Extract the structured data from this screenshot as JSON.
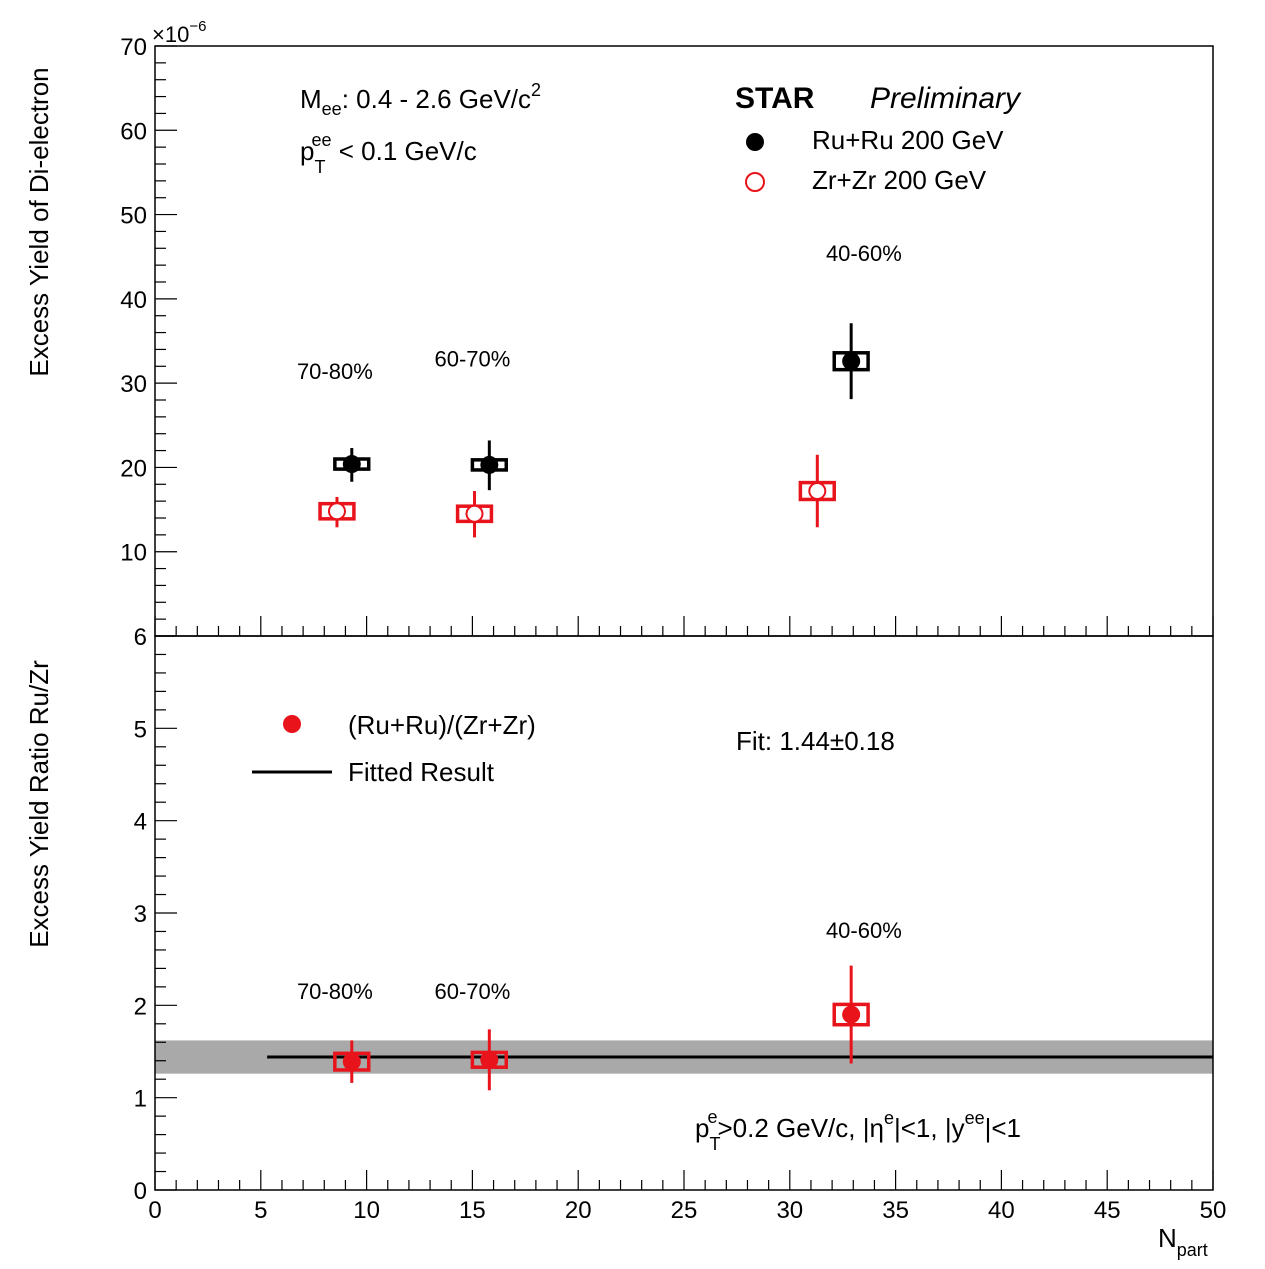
{
  "chart_data": [
    {
      "type": "scatter",
      "ylabel": "Excess Yield of Di-electron",
      "y_multiplier": "×10",
      "y_multiplier_exp": "−6",
      "ylim": [
        0,
        70
      ],
      "yticks": [
        10,
        20,
        30,
        40,
        50,
        60,
        70
      ],
      "xlim": [
        0,
        50
      ],
      "annotations": {
        "mass_range": {
          "prefix": "M",
          "sub": "ee",
          "text": ": 0.4 - 2.6 GeV/c",
          "sup": "2"
        },
        "pt_cut": {
          "prefix": "p",
          "sub": "T",
          "sup": "ee",
          "text": " < 0.1 GeV/c"
        },
        "experiment": "STAR",
        "status": "Preliminary"
      },
      "centrality_labels": [
        {
          "text": "70-80%",
          "x": 8.5,
          "y": 30.5
        },
        {
          "text": "60-70%",
          "x": 15.0,
          "y": 32.0
        },
        {
          "text": "40-60%",
          "x": 33.5,
          "y": 44.5
        }
      ],
      "series": [
        {
          "name": "Ru+Ru 200 GeV",
          "color": "#000000",
          "marker": "filled-circle",
          "points": [
            {
              "x": 9.3,
              "y": 20.4,
              "stat_lo": 18.3,
              "stat_hi": 22.3,
              "sys_dx": 0.8,
              "sys_lo": 19.8,
              "sys_hi": 21.0
            },
            {
              "x": 15.8,
              "y": 20.3,
              "stat_lo": 17.3,
              "stat_hi": 23.2,
              "sys_dx": 0.8,
              "sys_lo": 19.7,
              "sys_hi": 20.9
            },
            {
              "x": 32.9,
              "y": 32.6,
              "stat_lo": 28.1,
              "stat_hi": 37.1,
              "sys_dx": 0.8,
              "sys_lo": 31.6,
              "sys_hi": 33.6
            }
          ]
        },
        {
          "name": "Zr+Zr 200 GeV",
          "color": "#e8131b",
          "marker": "open-circle",
          "points": [
            {
              "x": 8.6,
              "y": 14.8,
              "stat_lo": 12.9,
              "stat_hi": 16.5,
              "sys_dx": 0.8,
              "sys_lo": 13.9,
              "sys_hi": 15.7
            },
            {
              "x": 15.1,
              "y": 14.5,
              "stat_lo": 11.7,
              "stat_hi": 17.2,
              "sys_dx": 0.8,
              "sys_lo": 13.6,
              "sys_hi": 15.4
            },
            {
              "x": 31.3,
              "y": 17.2,
              "stat_lo": 12.9,
              "stat_hi": 21.5,
              "sys_dx": 0.8,
              "sys_lo": 16.2,
              "sys_hi": 18.2
            }
          ]
        }
      ]
    },
    {
      "type": "scatter",
      "ylabel": "Excess Yield Ratio Ru/Zr",
      "xlabel": {
        "main": "N",
        "sub": "part"
      },
      "ylim": [
        0,
        6
      ],
      "yticks": [
        0,
        1,
        2,
        3,
        4,
        5,
        6
      ],
      "xlim": [
        0,
        50
      ],
      "xticks": [
        0,
        5,
        10,
        15,
        20,
        25,
        30,
        35,
        40,
        45,
        50
      ],
      "annotations": {
        "fit_text": "Fit: 1.44±0.18",
        "cuts": {
          "p1": "p",
          "sub1": "T",
          "sup1": "e",
          "t1": ">0.2 GeV/c, |η",
          "sup2": "e",
          "t2": "|<1, |y",
          "sup3": "ee",
          "t3": "|<1"
        }
      },
      "centrality_labels": [
        {
          "text": "70-80%",
          "x": 8.5,
          "y": 2.07
        },
        {
          "text": "60-70%",
          "x": 15.0,
          "y": 2.07
        },
        {
          "text": "40-60%",
          "x": 33.5,
          "y": 2.73
        }
      ],
      "fit": {
        "name": "Fitted Result",
        "value": 1.44,
        "error": 0.18,
        "x_range": [
          5.3,
          50
        ],
        "band_color": "#a9a9a9"
      },
      "series": [
        {
          "name": "(Ru+Ru)/(Zr+Zr)",
          "color": "#e8131b",
          "marker": "filled-circle",
          "points": [
            {
              "x": 9.3,
              "y": 1.39,
              "stat_lo": 1.16,
              "stat_hi": 1.62,
              "sys_dx": 0.8,
              "sys_lo": 1.3,
              "sys_hi": 1.48
            },
            {
              "x": 15.8,
              "y": 1.41,
              "stat_lo": 1.08,
              "stat_hi": 1.74,
              "sys_dx": 0.8,
              "sys_lo": 1.33,
              "sys_hi": 1.49
            },
            {
              "x": 32.9,
              "y": 1.9,
              "stat_lo": 1.37,
              "stat_hi": 2.43,
              "sys_dx": 0.8,
              "sys_lo": 1.79,
              "sys_hi": 2.01
            }
          ]
        }
      ]
    }
  ]
}
